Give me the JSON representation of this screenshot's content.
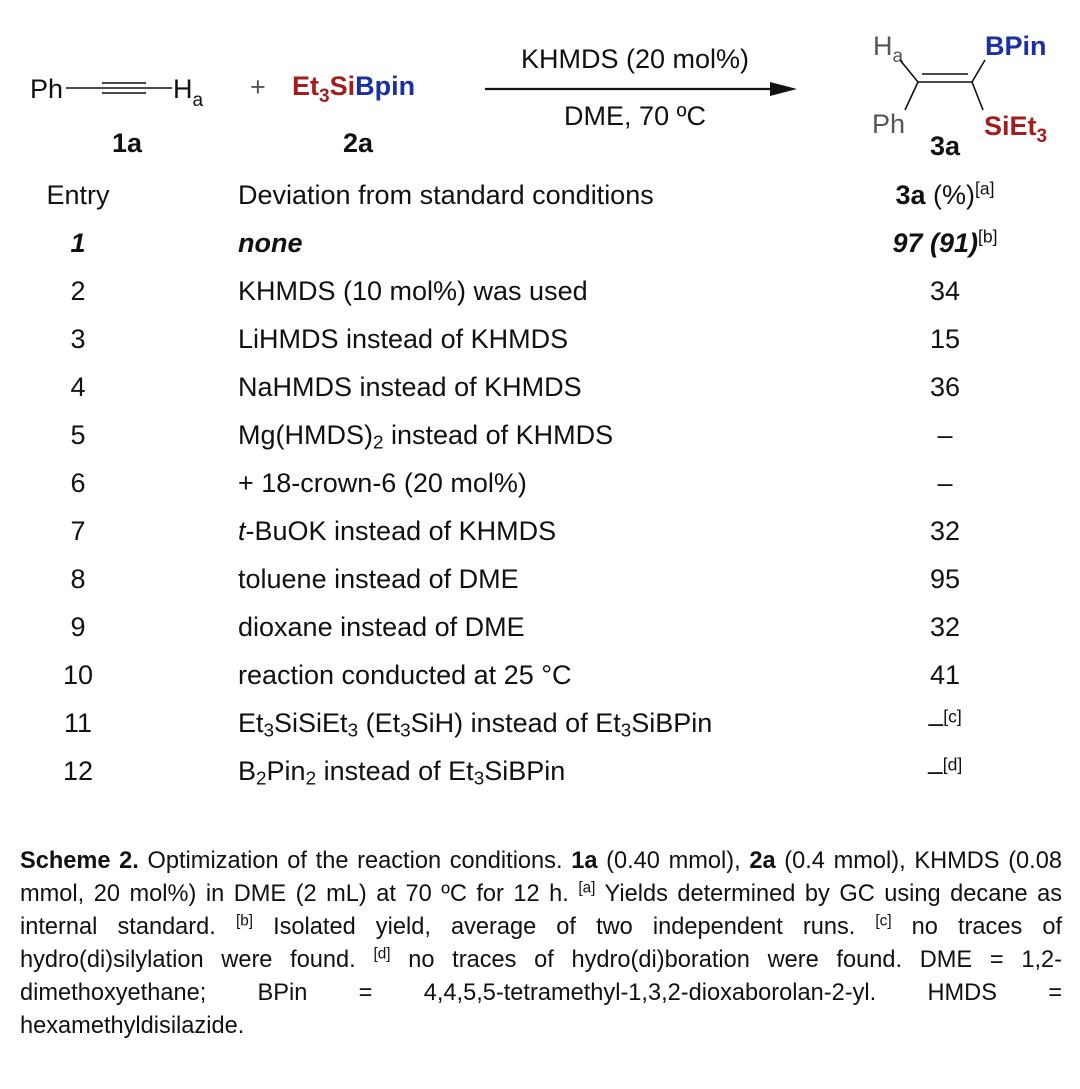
{
  "scheme": {
    "reactant1": {
      "ph": "Ph",
      "h": "H",
      "h_sub": "a",
      "label": "1a"
    },
    "plus": "+",
    "reactant2": {
      "et": "Et",
      "et_sub": "3",
      "si": "Si",
      "bpin": "Bpin",
      "label": "2a"
    },
    "conditions_above": "KHMDS (20 mol%)",
    "conditions_below": "DME, 70 ºC",
    "product": {
      "h": "H",
      "h_sub": "a",
      "bpin": "BPin",
      "ph": "Ph",
      "siet": "SiEt",
      "siet_sub": "3",
      "label": "3a"
    },
    "colors": {
      "silicon": "#a31d1d",
      "boron": "#1c2fa3"
    }
  },
  "table": {
    "headers": {
      "entry": "Entry",
      "deviation": "Deviation from standard conditions",
      "yield_bold": "3a",
      "yield_rest": " (%)",
      "yield_note": "[a]"
    },
    "rows": [
      {
        "entry": "1",
        "deviation": [
          {
            "t": "none"
          }
        ],
        "yield": "97 (91)",
        "note": "[b]",
        "style": "bold-italic"
      },
      {
        "entry": "2",
        "deviation": [
          {
            "t": "KHMDS (10 mol%) was used"
          }
        ],
        "yield": "34"
      },
      {
        "entry": "3",
        "deviation": [
          {
            "t": "LiHMDS instead of KHMDS"
          }
        ],
        "yield": "15"
      },
      {
        "entry": "4",
        "deviation": [
          {
            "t": "NaHMDS instead of KHMDS"
          }
        ],
        "yield": "36"
      },
      {
        "entry": "5",
        "deviation": [
          {
            "t": "Mg(HMDS)"
          },
          {
            "sub": "2"
          },
          {
            "t": " instead of KHMDS"
          }
        ],
        "yield": "–"
      },
      {
        "entry": "6",
        "deviation": [
          {
            "t": "+ 18-crown-6 (20 mol%)"
          }
        ],
        "yield": "–"
      },
      {
        "entry": "7",
        "deviation": [
          {
            "i": "t"
          },
          {
            "t": "-BuOK instead of KHMDS"
          }
        ],
        "yield": "32"
      },
      {
        "entry": "8",
        "deviation": [
          {
            "t": "toluene instead of DME"
          }
        ],
        "yield": "95"
      },
      {
        "entry": "9",
        "deviation": [
          {
            "t": "dioxane instead of DME"
          }
        ],
        "yield": "32"
      },
      {
        "entry": "10",
        "deviation": [
          {
            "t": "reaction conducted at 25 °C"
          }
        ],
        "yield": "41"
      },
      {
        "entry": "11",
        "deviation": [
          {
            "t": "Et"
          },
          {
            "sub": "3"
          },
          {
            "t": "SiSiEt"
          },
          {
            "sub": "3"
          },
          {
            "t": " (Et"
          },
          {
            "sub": "3"
          },
          {
            "t": "SiH) instead of Et"
          },
          {
            "sub": "3"
          },
          {
            "t": "SiBPin"
          }
        ],
        "yield": "–",
        "note": "[c]"
      },
      {
        "entry": "12",
        "deviation": [
          {
            "t": "B"
          },
          {
            "sub": "2"
          },
          {
            "t": "Pin"
          },
          {
            "sub": "2"
          },
          {
            "t": " instead of Et"
          },
          {
            "sub": "3"
          },
          {
            "t": "SiBPin"
          }
        ],
        "yield": "–",
        "note": "[d]"
      }
    ]
  },
  "caption": [
    {
      "b": "Scheme 2."
    },
    {
      "t": " Optimization of the reaction conditions. "
    },
    {
      "b": "1a"
    },
    {
      "t": " (0.40 mmol), "
    },
    {
      "b": "2a"
    },
    {
      "t": " (0.4 mmol), KHMDS (0.08 mmol, 20 mol%) in DME (2 mL) at 70 ºC for 12 h. "
    },
    {
      "sup": "[a]"
    },
    {
      "t": " Yields determined by GC using decane as internal standard. "
    },
    {
      "sup": "[b]"
    },
    {
      "t": " Isolated yield, average of two independent runs. "
    },
    {
      "sup": "[c]"
    },
    {
      "t": " no traces of hydro(di)silylation were found. "
    },
    {
      "sup": "[d]"
    },
    {
      "t": " no traces of hydro(di)boration were found. DME = 1,2-dimethoxyethane; BPin = 4,4,5,5-tetramethyl-1,3,2-dioxaborolan-2-yl. HMDS = hexamethyldisilazide."
    }
  ]
}
